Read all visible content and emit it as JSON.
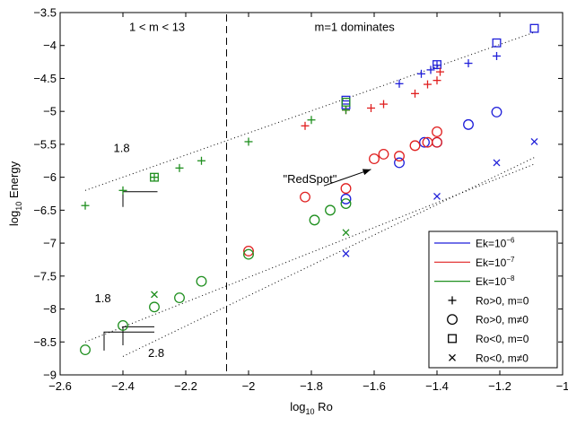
{
  "chart_data": {
    "type": "scatter",
    "xlabel": {
      "main": "log",
      "sub": "10",
      "rest": " Ro"
    },
    "ylabel": {
      "main": "log",
      "sub": "10",
      "rest": " Energy"
    },
    "xlim": [
      -2.6,
      -1.0
    ],
    "ylim": [
      -9.0,
      -3.5
    ],
    "xticks": [
      -2.6,
      -2.4,
      -2.2,
      -2.0,
      -1.8,
      -1.6,
      -1.4,
      -1.2,
      -1.0
    ],
    "xtick_labels": [
      "−2.6",
      "−2.4",
      "−2.2",
      "−2",
      "−1.8",
      "−1.6",
      "−1.4",
      "−1.2",
      "−1"
    ],
    "yticks": [
      -9.0,
      -8.5,
      -8.0,
      -7.5,
      -7.0,
      -6.5,
      -6.0,
      -5.5,
      -5.0,
      -4.5,
      -4.0,
      -3.5
    ],
    "ytick_labels": [
      "−9",
      "−8.5",
      "−8",
      "−7.5",
      "−7",
      "−6.5",
      "−6",
      "−5.5",
      "−5",
      "−4.5",
      "−4",
      "−3.5"
    ],
    "grid": false,
    "colors": {
      "Ek=1e-6": "#1f1fd9",
      "Ek=1e-7": "#e02020",
      "Ek=1e-8": "#1f8f1f",
      "axis": "#000000"
    },
    "regime_divider_x": -2.07,
    "regime_labels": [
      {
        "text": "1 < m < 13",
        "x": -2.38,
        "y": -3.78
      },
      {
        "text": "m=1 dominates",
        "x": -1.79,
        "y": -3.78
      }
    ],
    "fit_lines": [
      {
        "x": [
          -2.52,
          -1.09
        ],
        "y": [
          -6.2,
          -3.8
        ]
      },
      {
        "x": [
          -2.52,
          -1.09
        ],
        "y": [
          -8.5,
          -5.8
        ]
      },
      {
        "x": [
          -2.4,
          -1.09
        ],
        "y": [
          -8.72,
          -5.7
        ]
      }
    ],
    "slope_annotations": [
      {
        "label": "1.8",
        "corner": [
          -2.4,
          -6.22
        ],
        "dx": 0.11,
        "dy": -0.23,
        "text_at": [
          -2.43,
          -5.62
        ]
      },
      {
        "label": "1.8",
        "corner": [
          -2.46,
          -8.35
        ],
        "dx": 0.16,
        "dy": -0.28,
        "text_at": [
          -2.49,
          -7.9
        ]
      },
      {
        "label": "2.8",
        "corner": [
          -2.4,
          -8.27
        ],
        "dx": 0.1,
        "dy": -0.28,
        "text_at": [
          -2.32,
          -8.73
        ]
      }
    ],
    "arrow_annotation": {
      "text": "\"RedSpot\"",
      "text_at": [
        -1.89,
        -6.09
      ],
      "from": [
        -1.76,
        -6.13
      ],
      "to": [
        -1.61,
        -5.88
      ]
    },
    "series": [
      {
        "name": "Ek=10^-6, Ro>0, m=0",
        "color_key": "Ek=1e-6",
        "marker": "plus",
        "x": [
          -1.52,
          -1.45,
          -1.42,
          -1.4,
          -1.3,
          -1.21
        ],
        "y": [
          -4.58,
          -4.43,
          -4.37,
          -4.3,
          -4.27,
          -4.16
        ]
      },
      {
        "name": "Ek=10^-6, Ro>0, m≠0",
        "color_key": "Ek=1e-6",
        "marker": "circle",
        "x": [
          -1.69,
          -1.52,
          -1.44,
          -1.4,
          -1.3,
          -1.21
        ],
        "y": [
          -6.33,
          -5.78,
          -5.47,
          -5.47,
          -5.2,
          -5.01
        ]
      },
      {
        "name": "Ek=10^-6, Ro<0, m=0",
        "color_key": "Ek=1e-6",
        "marker": "square",
        "x": [
          -1.69,
          -1.69,
          -1.4,
          -1.21,
          -1.09
        ],
        "y": [
          -4.83,
          -4.9,
          -4.29,
          -3.96,
          -3.74
        ]
      },
      {
        "name": "Ek=10^-6, Ro<0, m≠0",
        "color_key": "Ek=1e-6",
        "marker": "x",
        "x": [
          -1.69,
          -1.4,
          -1.21,
          -1.09
        ],
        "y": [
          -7.16,
          -6.29,
          -5.78,
          -5.46
        ]
      },
      {
        "name": "Ek=10^-7, Ro>0, m=0",
        "color_key": "Ek=1e-7",
        "marker": "plus",
        "x": [
          -1.82,
          -1.69,
          -1.61,
          -1.57,
          -1.47,
          -1.43,
          -1.4,
          -1.39
        ],
        "y": [
          -5.22,
          -4.98,
          -4.95,
          -4.89,
          -4.73,
          -4.59,
          -4.53,
          -4.4
        ]
      },
      {
        "name": "Ek=10^-7, Ro>0, m≠0",
        "color_key": "Ek=1e-7",
        "marker": "circle",
        "x": [
          -2.0,
          -1.82,
          -1.69,
          -1.6,
          -1.57,
          -1.52,
          -1.47,
          -1.43,
          -1.4,
          -1.4
        ],
        "y": [
          -7.12,
          -6.3,
          -6.17,
          -5.72,
          -5.65,
          -5.68,
          -5.52,
          -5.47,
          -5.47,
          -5.31
        ]
      },
      {
        "name": "Ek=10^-8, Ro>0, m=0",
        "color_key": "Ek=1e-8",
        "marker": "plus",
        "x": [
          -2.52,
          -2.4,
          -2.3,
          -2.22,
          -2.15,
          -2.0,
          -1.8,
          -1.69
        ],
        "y": [
          -6.43,
          -6.2,
          -6.0,
          -5.86,
          -5.75,
          -5.46,
          -5.13,
          -4.98
        ]
      },
      {
        "name": "Ek=10^-8, Ro>0, m≠0",
        "color_key": "Ek=1e-8",
        "marker": "circle",
        "x": [
          -2.52,
          -2.4,
          -2.3,
          -2.22,
          -2.15,
          -2.0,
          -1.79,
          -1.74,
          -1.69
        ],
        "y": [
          -8.62,
          -8.25,
          -7.97,
          -7.83,
          -7.58,
          -7.17,
          -6.65,
          -6.5,
          -6.4
        ]
      },
      {
        "name": "Ek=10^-8, Ro<0, m=0",
        "color_key": "Ek=1e-8",
        "marker": "square",
        "x": [
          -2.3,
          -1.69
        ],
        "y": [
          -6.0,
          -4.86
        ]
      },
      {
        "name": "Ek=10^-8, Ro<0, m≠0",
        "color_key": "Ek=1e-8",
        "marker": "x",
        "x": [
          -2.3,
          -1.69
        ],
        "y": [
          -7.78,
          -6.84
        ]
      }
    ],
    "legend": {
      "placement": "bottom-right",
      "entries": [
        {
          "kind": "line",
          "color_key": "Ek=1e-6",
          "base": "Ek=10",
          "exp": "−6"
        },
        {
          "kind": "line",
          "color_key": "Ek=1e-7",
          "base": "Ek=10",
          "exp": "−7"
        },
        {
          "kind": "line",
          "color_key": "Ek=1e-8",
          "base": "Ek=10",
          "exp": "−8"
        },
        {
          "kind": "marker",
          "marker": "plus",
          "label": "Ro>0, m=0"
        },
        {
          "kind": "marker",
          "marker": "circle",
          "label": "Ro>0, m≠0"
        },
        {
          "kind": "marker",
          "marker": "square",
          "label": "Ro<0, m=0"
        },
        {
          "kind": "marker",
          "marker": "x",
          "label": "Ro<0, m≠0"
        }
      ]
    }
  }
}
